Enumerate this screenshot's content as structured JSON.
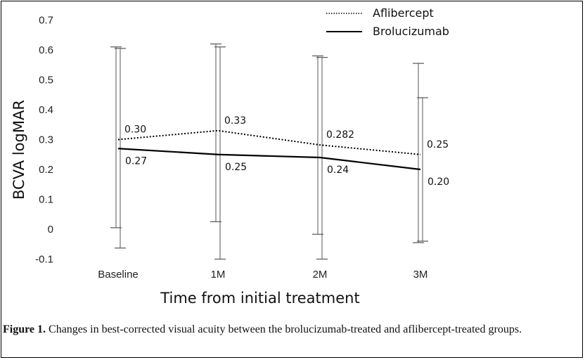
{
  "chart_data": {
    "type": "line",
    "categories": [
      "Baseline",
      "1M",
      "2M",
      "3M"
    ],
    "ylabel": "BCVA logMAR",
    "xlabel": "Time from initial treatment",
    "ylim": [
      -0.1,
      0.7
    ],
    "yticks": [
      "-0.1",
      "0",
      "0.1",
      "0.2",
      "0.3",
      "0.4",
      "0.5",
      "0.6",
      "0.7"
    ],
    "grid": false,
    "legend_position": "top-right",
    "series": [
      {
        "name": "Aflibercept",
        "style": "dotted",
        "values": [
          0.3,
          0.33,
          0.282,
          0.25
        ],
        "labels": [
          "0.30",
          "0.33",
          "0.282",
          "0.25"
        ],
        "error_low": [
          0.005,
          0.025,
          -0.017,
          -0.045
        ],
        "error_high": [
          0.61,
          0.62,
          0.58,
          0.555
        ]
      },
      {
        "name": "Brolucizumab",
        "style": "solid",
        "values": [
          0.27,
          0.25,
          0.24,
          0.2
        ],
        "labels": [
          "0.27",
          "0.25",
          "0.24",
          "0.20"
        ],
        "error_low": [
          -0.063,
          -0.1,
          -0.1,
          -0.04
        ],
        "error_high": [
          0.605,
          0.61,
          0.575,
          0.44
        ]
      }
    ]
  },
  "caption": {
    "label": "Figure 1.",
    "text": " Changes in best-corrected visual acuity between the brolucizumab-treated and aflibercept-treated groups."
  },
  "colors": {
    "line": "#000000",
    "errorbar": "#555555"
  }
}
